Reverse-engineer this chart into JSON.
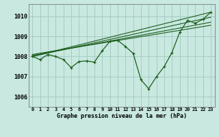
{
  "title": "Graphe pression niveau de la mer (hPa)",
  "bg_color": "#c8e8e0",
  "plot_bg_color": "#c8e8e0",
  "grid_color": "#a0c8c0",
  "line_color": "#1a5c1a",
  "x_ticks": [
    0,
    1,
    2,
    3,
    4,
    5,
    6,
    7,
    8,
    9,
    10,
    11,
    12,
    13,
    14,
    15,
    16,
    17,
    18,
    19,
    20,
    21,
    22,
    23
  ],
  "y_ticks": [
    1006,
    1007,
    1008,
    1009,
    1010
  ],
  "ylim": [
    1005.5,
    1010.6
  ],
  "xlim": [
    -0.5,
    23.5
  ],
  "main_series": [
    1008.0,
    1007.85,
    1008.1,
    1008.0,
    1007.85,
    1007.45,
    1007.75,
    1007.78,
    1007.72,
    1008.28,
    1008.75,
    1008.8,
    1008.5,
    1008.15,
    1006.85,
    1006.4,
    1007.0,
    1007.5,
    1008.2,
    1009.2,
    1009.8,
    1009.65,
    1009.85,
    1010.2
  ],
  "trend_lines": [
    [
      1008.0,
      1010.2
    ],
    [
      1008.0,
      1009.95
    ],
    [
      1008.05,
      1009.7
    ],
    [
      1008.1,
      1009.55
    ]
  ],
  "trend_x_start": 0,
  "trend_x_end": 23
}
